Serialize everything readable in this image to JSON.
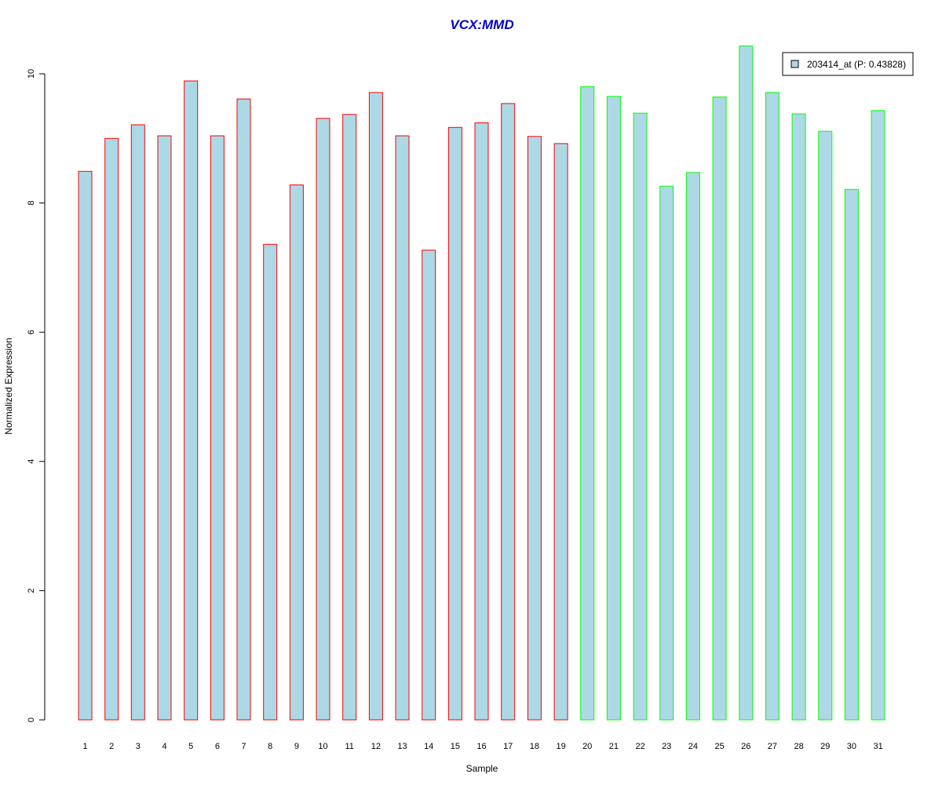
{
  "chart_data": {
    "type": "bar",
    "title": "VCX:MMD",
    "xlabel": "Sample",
    "ylabel": "Normalized Expression",
    "ylim": [
      0,
      10.4
    ],
    "yticks": [
      "0",
      "2",
      "4",
      "6",
      "8",
      "10"
    ],
    "categories": [
      "1",
      "2",
      "3",
      "4",
      "5",
      "6",
      "7",
      "8",
      "9",
      "10",
      "11",
      "12",
      "13",
      "14",
      "15",
      "16",
      "17",
      "18",
      "19",
      "20",
      "21",
      "22",
      "23",
      "24",
      "25",
      "26",
      "27",
      "28",
      "29",
      "30",
      "31"
    ],
    "series": [
      {
        "name": "203414_at (P: 0.43828)",
        "values": [
          8.49,
          9.0,
          9.21,
          9.04,
          9.89,
          9.04,
          9.61,
          7.36,
          8.28,
          9.31,
          9.37,
          9.71,
          9.04,
          7.27,
          9.17,
          9.24,
          9.54,
          9.03,
          8.92,
          9.8,
          9.65,
          9.39,
          8.26,
          8.47,
          9.64,
          10.43,
          9.71,
          9.38,
          9.11,
          8.21,
          9.43
        ]
      }
    ],
    "groups": [
      "A",
      "A",
      "A",
      "A",
      "A",
      "A",
      "A",
      "A",
      "A",
      "A",
      "A",
      "A",
      "A",
      "A",
      "A",
      "A",
      "A",
      "A",
      "A",
      "B",
      "B",
      "B",
      "B",
      "B",
      "B",
      "B",
      "B",
      "B",
      "B",
      "B",
      "B"
    ],
    "colors": {
      "fill": "#add8e6",
      "group_A_border": "#ff0000",
      "group_B_border": "#00ff00",
      "title": "#0000cc"
    },
    "legend": {
      "label": "203414_at (P: 0.43828)",
      "position": "top-right"
    },
    "grid": false
  }
}
